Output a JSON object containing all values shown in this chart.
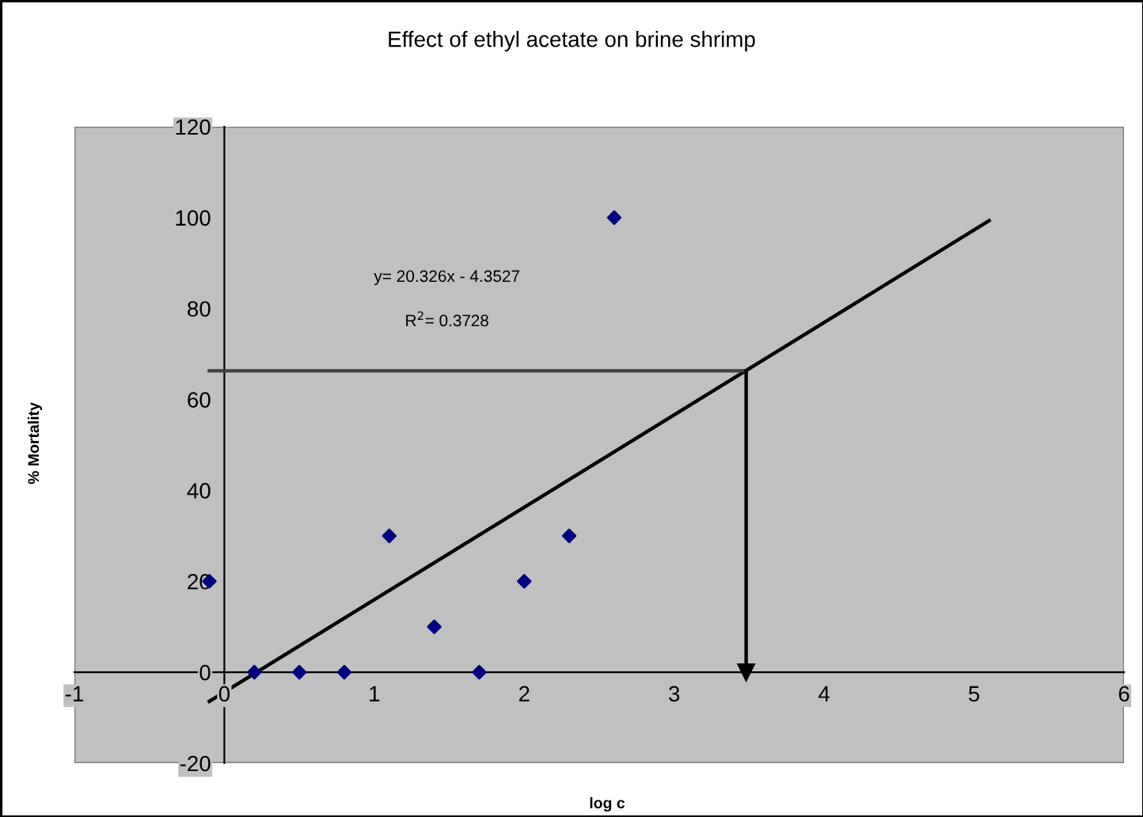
{
  "chart_data": {
    "type": "scatter",
    "title": "Effect of ethyl acetate on brine shrimp",
    "xlabel": "log c",
    "ylabel": "% Mortality",
    "series": [
      {
        "color": "#000080",
        "marker": "diamond",
        "x": [
          -0.1,
          0.2,
          0.5,
          0.8,
          1.1,
          1.4,
          1.7,
          2.0,
          2.3,
          2.6
        ],
        "values": [
          20,
          0,
          0,
          0,
          30,
          10,
          0,
          20,
          30,
          100
        ]
      },
      {
        "type": "line",
        "color": "#000000",
        "marker": "none",
        "x": [
          -0.1,
          5.1
        ],
        "values": [
          -6.4,
          99.3
        ]
      },
      {
        "type": "line",
        "color": "#404040",
        "marker": "none",
        "x": [
          -0.1,
          3.48
        ],
        "values": [
          66.3,
          66.3
        ]
      },
      {
        "type": "line",
        "color": "#000000",
        "marker": "triangle",
        "x": [
          3.48,
          3.48
        ],
        "values": [
          66.3,
          0
        ]
      }
    ],
    "annotations": [
      "y= 20.326x - 4.3527",
      "R$^{2}$= 0.3728"
    ],
    "xlim": [
      -1,
      6
    ],
    "xticks": [
      -1,
      0,
      1,
      2,
      3,
      4,
      5,
      6
    ],
    "ylim": [
      -20,
      120
    ],
    "yticks": [
      -20,
      0,
      20,
      40,
      60,
      80,
      100,
      120
    ],
    "grid": false,
    "legend": false
  }
}
